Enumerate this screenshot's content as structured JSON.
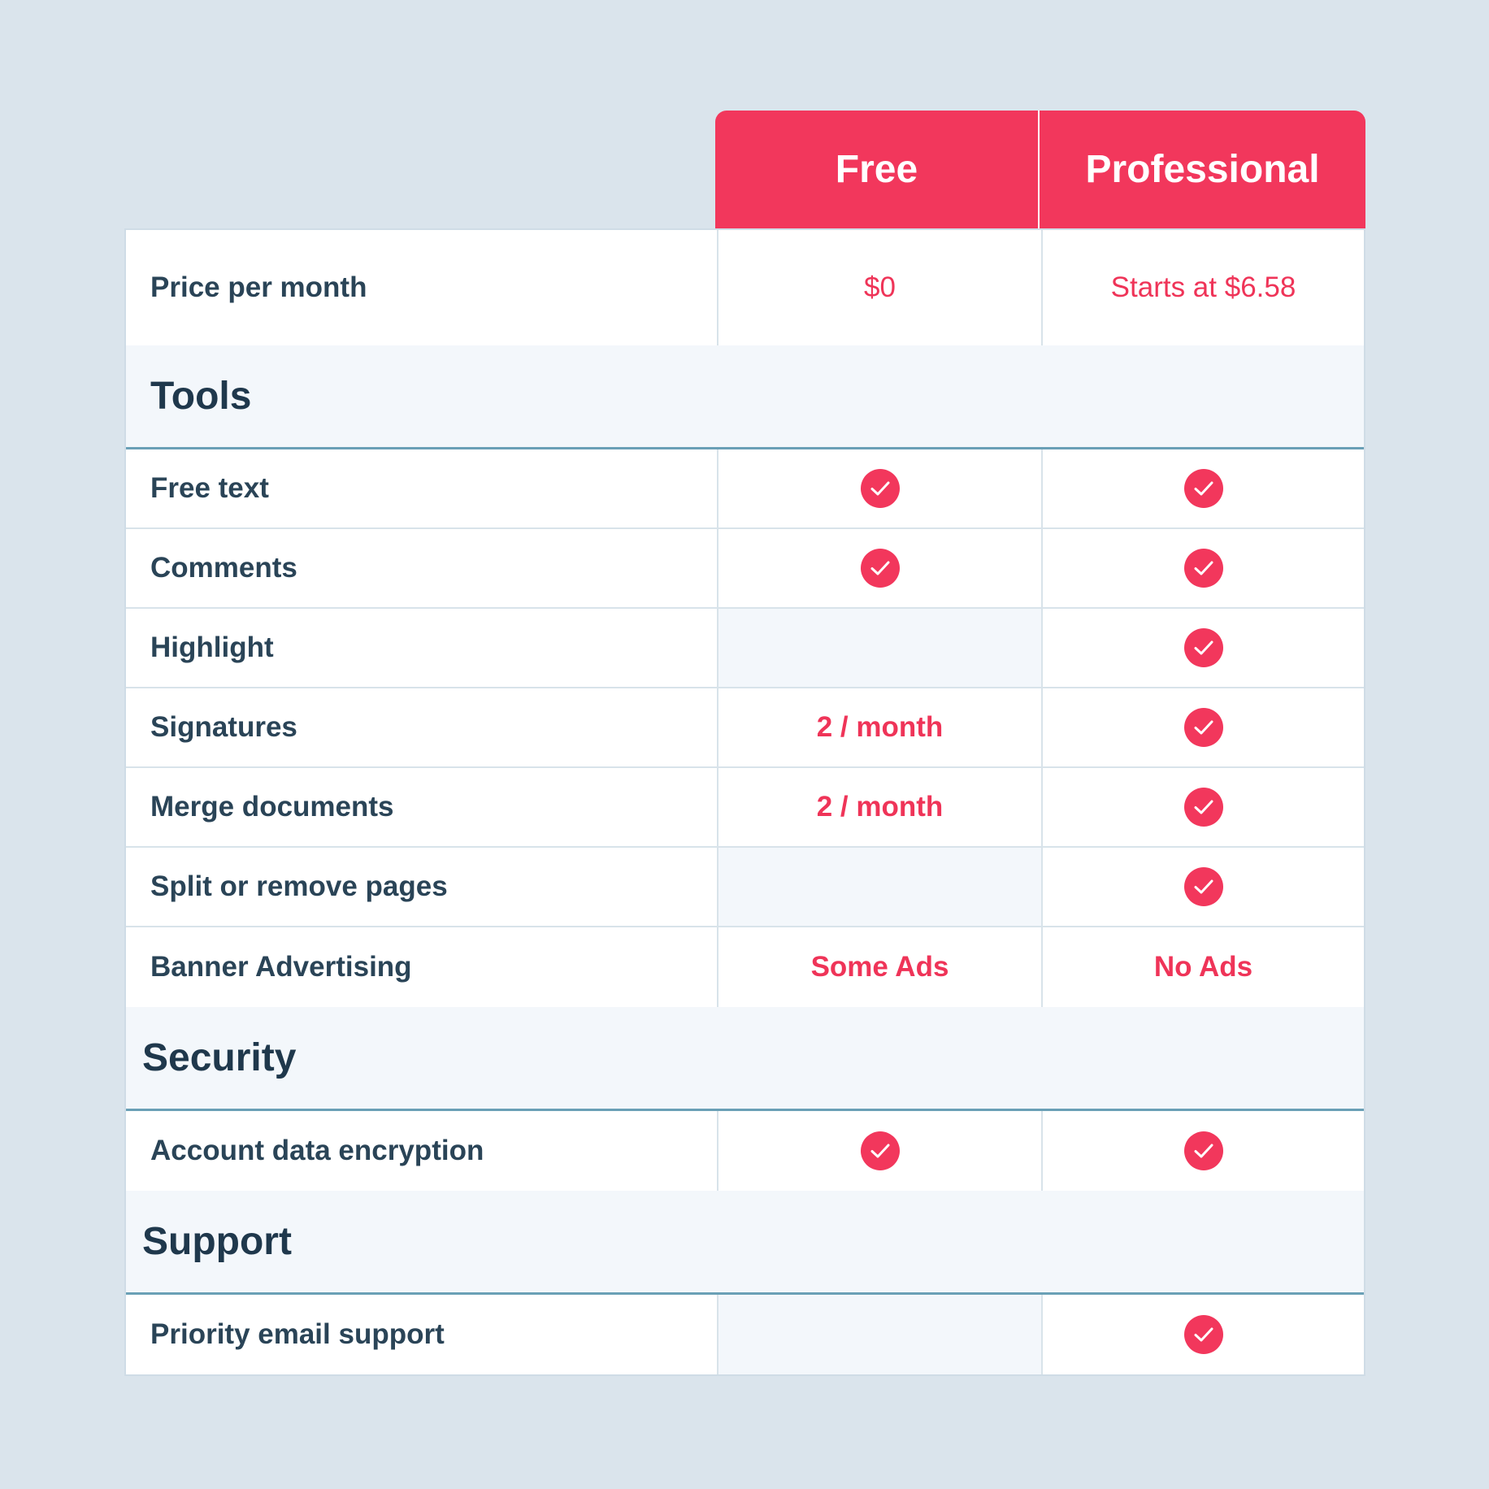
{
  "plans": {
    "free": "Free",
    "professional": "Professional"
  },
  "price": {
    "label": "Price per month",
    "free": "$0",
    "professional": "Starts at $6.58"
  },
  "sections": {
    "tools": {
      "title": "Tools",
      "rows": [
        {
          "label": "Free text",
          "free": "check-icon",
          "professional": "check-icon"
        },
        {
          "label": "Comments",
          "free": "check-icon",
          "professional": "check-icon"
        },
        {
          "label": "Highlight",
          "free": "",
          "professional": "check-icon"
        },
        {
          "label": "Signatures",
          "free": "2 / month",
          "professional": "check-icon"
        },
        {
          "label": "Merge documents",
          "free": "2 / month",
          "professional": "check-icon"
        },
        {
          "label": "Split or remove pages",
          "free": "",
          "professional": "check-icon"
        },
        {
          "label": "Banner Advertising",
          "free": "Some Ads",
          "professional": "No Ads"
        }
      ]
    },
    "security": {
      "title": "Security",
      "rows": [
        {
          "label": "Account data encryption",
          "free": "check-icon",
          "professional": "check-icon"
        }
      ]
    },
    "support": {
      "title": "Support",
      "rows": [
        {
          "label": "Priority email support",
          "free": "",
          "professional": "check-icon"
        }
      ]
    }
  },
  "colors": {
    "accent": "#f2375c",
    "background": "#dae4ec",
    "text": "#2a4457",
    "section_bg": "#f3f7fb",
    "section_rule": "#6aa0b6"
  }
}
